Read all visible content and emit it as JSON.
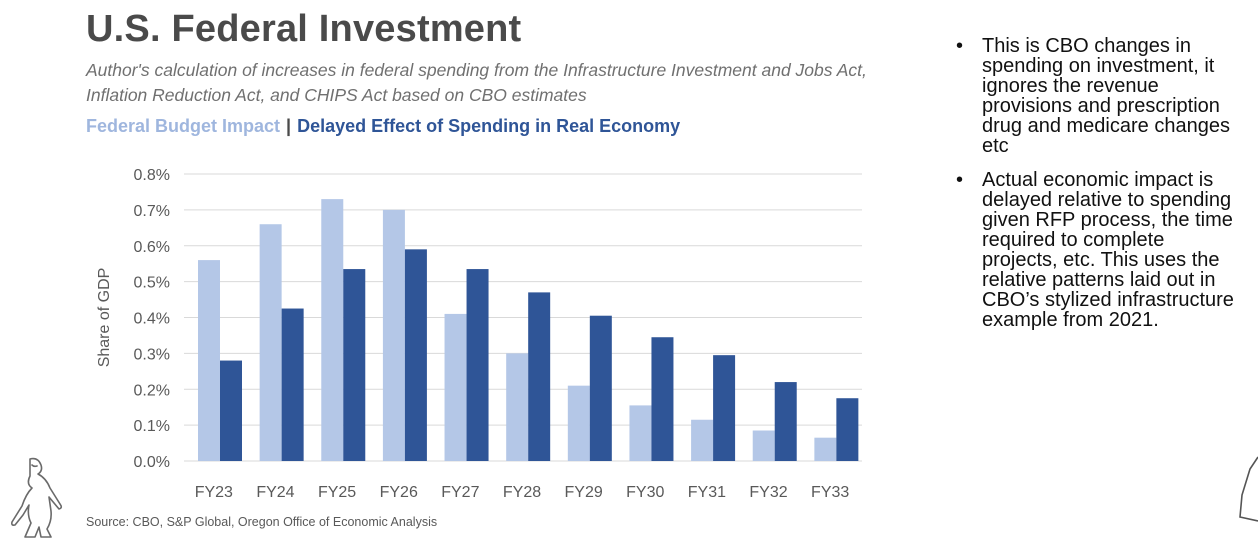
{
  "header": {
    "title": "U.S. Federal Investment",
    "subtitle": "Author's calculation of increases in federal spending from the Infrastructure Investment and Jobs Act, Inflation Reduction Act, and CHIPS Act based on CBO estimates",
    "legend_label_1": "Federal Budget Impact",
    "legend_separator": "|",
    "legend_label_2": "Delayed Effect of Spending in Real Economy"
  },
  "chart_data": {
    "type": "bar",
    "title": "U.S. Federal Investment",
    "xlabel": "",
    "ylabel": "Share of GDP",
    "ylim": [
      0,
      0.8
    ],
    "yticks": [
      "0.0%",
      "0.1%",
      "0.2%",
      "0.3%",
      "0.4%",
      "0.5%",
      "0.6%",
      "0.7%",
      "0.8%"
    ],
    "grid": true,
    "categories": [
      "FY23",
      "FY24",
      "FY25",
      "FY26",
      "FY27",
      "FY28",
      "FY29",
      "FY30",
      "FY31",
      "FY32",
      "FY33"
    ],
    "series": [
      {
        "name": "Federal Budget Impact",
        "color": "#b4c7e7",
        "values": [
          0.56,
          0.66,
          0.73,
          0.7,
          0.41,
          0.3,
          0.21,
          0.155,
          0.115,
          0.085,
          0.065
        ]
      },
      {
        "name": "Delayed Effect of Spending in Real Economy",
        "color": "#2f5597",
        "values": [
          0.28,
          0.425,
          0.535,
          0.59,
          0.535,
          0.47,
          0.405,
          0.345,
          0.295,
          0.22,
          0.175
        ]
      }
    ]
  },
  "source": "Source: CBO, S&P Global, Oregon Office of Economic Analysis",
  "notes": {
    "bullet_symbol": "•",
    "items": [
      "This is CBO changes in spending on investment, it ignores the revenue provisions and prescription drug and medicare changes etc",
      "Actual economic impact is delayed relative to spending given RFP process, the time required to complete projects, etc. This uses the relative patterns laid out in CBO’s stylized infrastructure example from 2021."
    ]
  },
  "colors": {
    "grid": "#d9d9d9",
    "axis_text": "#595959"
  }
}
